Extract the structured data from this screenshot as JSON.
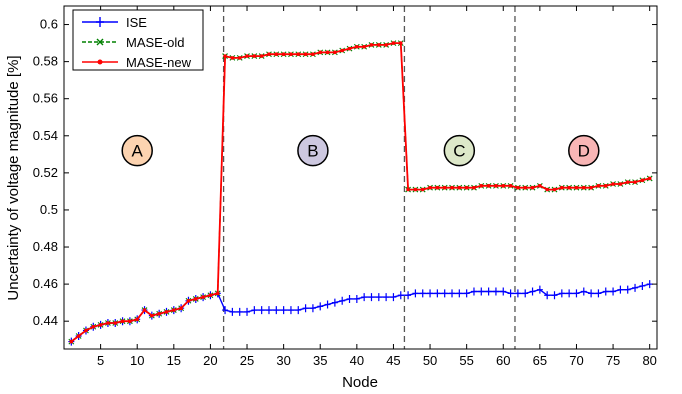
{
  "chart_data": {
    "type": "line",
    "title": "",
    "xlabel": "Node",
    "ylabel": "Uncertainty of voltage magnitude [%]",
    "xlim": [
      0,
      81
    ],
    "ylim": [
      0.425,
      0.61
    ],
    "xticks": [
      5,
      10,
      15,
      20,
      25,
      30,
      35,
      40,
      45,
      50,
      55,
      60,
      65,
      70,
      75,
      80
    ],
    "yticks": [
      0.44,
      0.46,
      0.48,
      0.5,
      0.52,
      0.54,
      0.56,
      0.58,
      0.6
    ],
    "ytick_labels": [
      "0.44",
      "0.46",
      "0.48",
      "0.5",
      "0.52",
      "0.54",
      "0.56",
      "0.58",
      "0.6"
    ],
    "grid": false,
    "legend_position": "top-left",
    "x": [
      1,
      2,
      3,
      4,
      5,
      6,
      7,
      8,
      9,
      10,
      11,
      12,
      13,
      14,
      15,
      16,
      17,
      18,
      19,
      20,
      21,
      22,
      23,
      24,
      25,
      26,
      27,
      28,
      29,
      30,
      31,
      32,
      33,
      34,
      35,
      36,
      37,
      38,
      39,
      40,
      41,
      42,
      43,
      44,
      45,
      46,
      47,
      48,
      49,
      50,
      51,
      52,
      53,
      54,
      55,
      56,
      57,
      58,
      59,
      60,
      61,
      62,
      63,
      64,
      65,
      66,
      67,
      68,
      69,
      70,
      71,
      72,
      73,
      74,
      75,
      76,
      77,
      78,
      79,
      80
    ],
    "series": [
      {
        "name": "ISE",
        "color": "#0000ff",
        "marker": "plus",
        "values": [
          0.429,
          0.432,
          0.435,
          0.437,
          0.438,
          0.439,
          0.439,
          0.44,
          0.44,
          0.441,
          0.446,
          0.443,
          0.444,
          0.445,
          0.446,
          0.447,
          0.451,
          0.452,
          0.453,
          0.454,
          0.455,
          0.446,
          0.445,
          0.445,
          0.445,
          0.446,
          0.446,
          0.446,
          0.446,
          0.446,
          0.446,
          0.446,
          0.447,
          0.447,
          0.448,
          0.449,
          0.45,
          0.451,
          0.452,
          0.452,
          0.453,
          0.453,
          0.453,
          0.453,
          0.453,
          0.454,
          0.454,
          0.455,
          0.455,
          0.455,
          0.455,
          0.455,
          0.455,
          0.455,
          0.455,
          0.456,
          0.456,
          0.456,
          0.456,
          0.456,
          0.455,
          0.455,
          0.455,
          0.456,
          0.457,
          0.454,
          0.454,
          0.455,
          0.455,
          0.455,
          0.456,
          0.455,
          0.455,
          0.456,
          0.456,
          0.457,
          0.457,
          0.458,
          0.459,
          0.46
        ]
      },
      {
        "name": "MASE-old",
        "color": "#008000",
        "marker": "x",
        "values": [
          0.429,
          0.432,
          0.435,
          0.437,
          0.438,
          0.439,
          0.439,
          0.44,
          0.44,
          0.441,
          0.446,
          0.443,
          0.444,
          0.445,
          0.446,
          0.447,
          0.451,
          0.452,
          0.453,
          0.454,
          0.455,
          0.583,
          0.582,
          0.582,
          0.583,
          0.583,
          0.583,
          0.584,
          0.584,
          0.584,
          0.584,
          0.584,
          0.584,
          0.584,
          0.585,
          0.585,
          0.585,
          0.586,
          0.587,
          0.588,
          0.588,
          0.589,
          0.589,
          0.589,
          0.59,
          0.59,
          0.511,
          0.511,
          0.511,
          0.512,
          0.512,
          0.512,
          0.512,
          0.512,
          0.512,
          0.512,
          0.513,
          0.513,
          0.513,
          0.513,
          0.513,
          0.512,
          0.512,
          0.512,
          0.513,
          0.511,
          0.511,
          0.512,
          0.512,
          0.512,
          0.512,
          0.512,
          0.513,
          0.513,
          0.514,
          0.514,
          0.515,
          0.515,
          0.516,
          0.517
        ]
      },
      {
        "name": "MASE-new",
        "color": "#ff0000",
        "marker": "dot",
        "values": [
          0.429,
          0.432,
          0.435,
          0.437,
          0.438,
          0.439,
          0.439,
          0.44,
          0.44,
          0.441,
          0.446,
          0.443,
          0.444,
          0.445,
          0.446,
          0.447,
          0.451,
          0.452,
          0.453,
          0.454,
          0.455,
          0.583,
          0.582,
          0.582,
          0.583,
          0.583,
          0.583,
          0.584,
          0.584,
          0.584,
          0.584,
          0.584,
          0.584,
          0.584,
          0.585,
          0.585,
          0.585,
          0.586,
          0.587,
          0.588,
          0.588,
          0.589,
          0.589,
          0.589,
          0.59,
          0.59,
          0.511,
          0.511,
          0.511,
          0.512,
          0.512,
          0.512,
          0.512,
          0.512,
          0.512,
          0.512,
          0.513,
          0.513,
          0.513,
          0.513,
          0.513,
          0.512,
          0.512,
          0.512,
          0.513,
          0.511,
          0.511,
          0.512,
          0.512,
          0.512,
          0.512,
          0.512,
          0.513,
          0.513,
          0.514,
          0.514,
          0.515,
          0.515,
          0.516,
          0.517
        ]
      }
    ],
    "vlines": [
      21.8,
      46.5,
      61.6
    ],
    "regions": [
      {
        "label": "A",
        "x": 10,
        "y": 0.532,
        "color": "#fcd3b0"
      },
      {
        "label": "B",
        "x": 34,
        "y": 0.532,
        "color": "#cdc8e0"
      },
      {
        "label": "C",
        "x": 54,
        "y": 0.532,
        "color": "#dde8c9"
      },
      {
        "label": "D",
        "x": 71,
        "y": 0.532,
        "color": "#f8b5b5"
      }
    ]
  }
}
